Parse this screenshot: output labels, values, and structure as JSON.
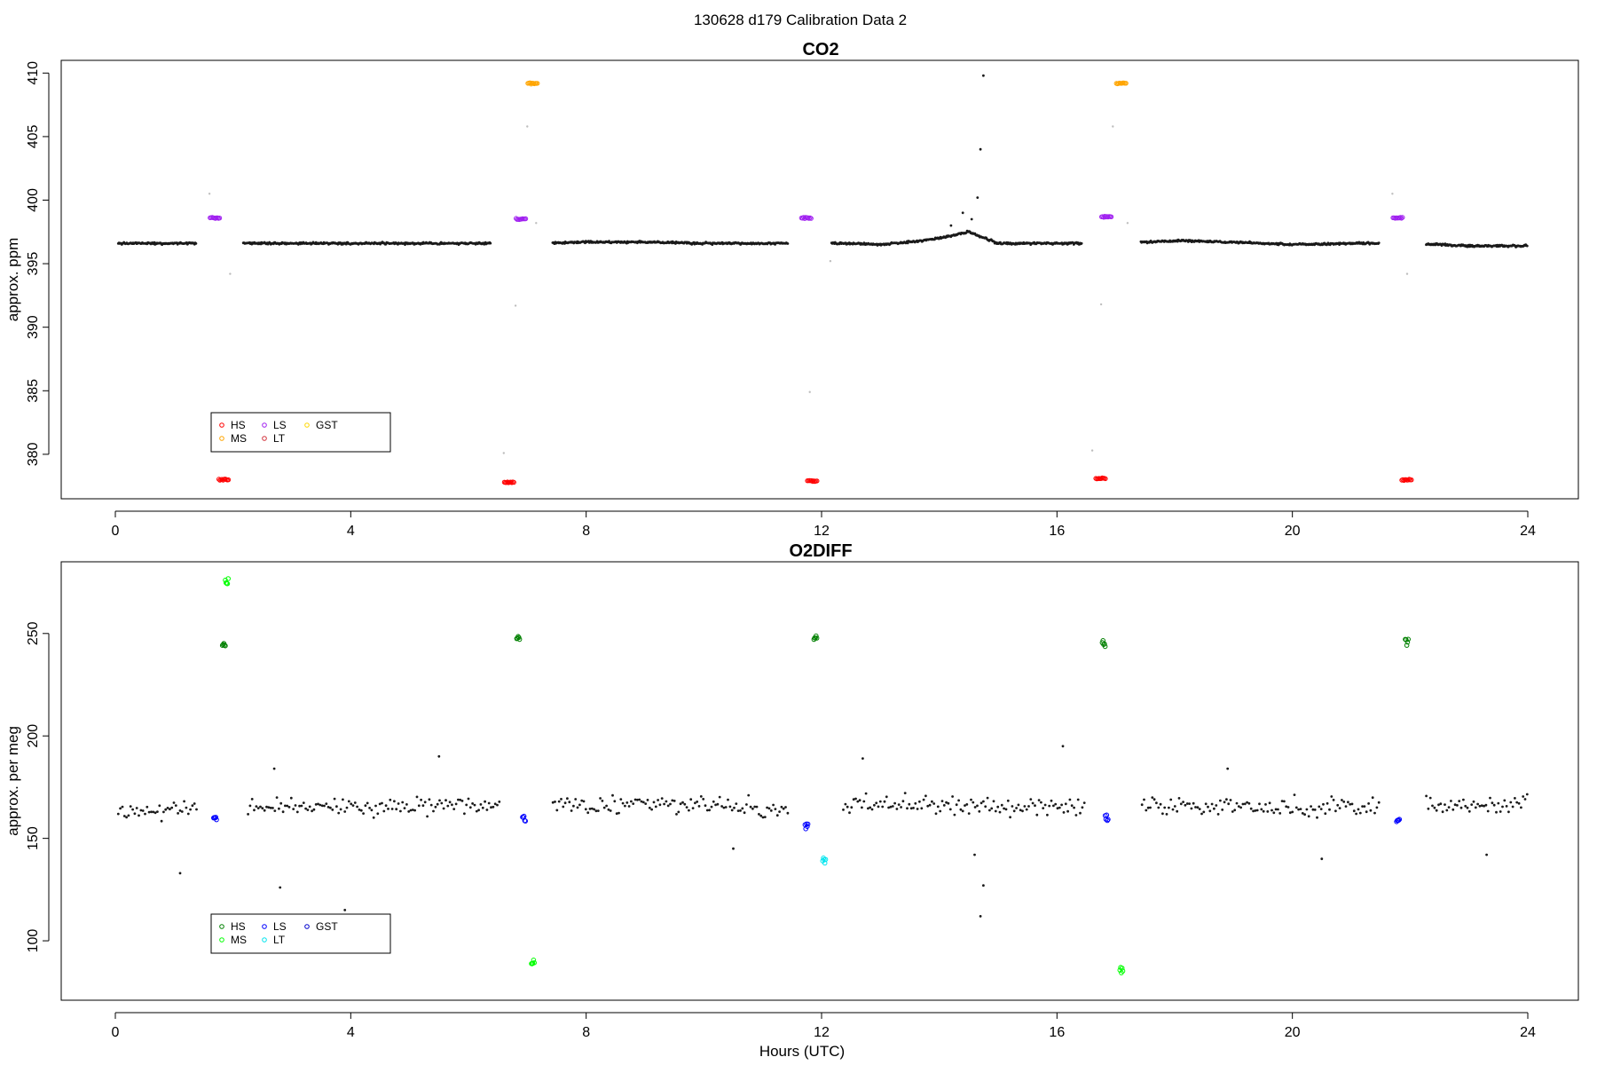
{
  "suptitle": "130628   d179   Calibration Data 2",
  "colors": {
    "data": "#1a1a1a",
    "excluded": "#bdbdbd",
    "HS_co2": "#ff0000",
    "MS_co2": "#ffa500",
    "LS_co2": "#a020f0",
    "LT_co2": "#d2323c",
    "GST_co2": "#ffd700",
    "HS_o2": "#008000",
    "MS_o2": "#00ff00",
    "LS_o2": "#0000ff",
    "LT_o2": "#00e5ee",
    "GST_o2": "#0000cd"
  },
  "chart_data": [
    {
      "type": "scatter",
      "title": "CO2",
      "xlabel": "",
      "ylabel": "approx. ppm",
      "xlim": [
        0,
        24
      ],
      "ylim": [
        376.5,
        411
      ],
      "xticks": [
        0,
        4,
        8,
        12,
        16,
        20,
        24
      ],
      "yticks": [
        380,
        385,
        390,
        395,
        400,
        405,
        410
      ],
      "legend": {
        "position": "bottom-left",
        "entries": [
          "HS",
          "MS",
          "LS",
          "LT",
          "GST"
        ]
      },
      "baseline": {
        "x": [
          0,
          1,
          2,
          3,
          4,
          5,
          6,
          7,
          8,
          9,
          10,
          11,
          12,
          12.5,
          13,
          13.5,
          14,
          14.5,
          15,
          16,
          17,
          18,
          19,
          20,
          21,
          22,
          23,
          24
        ],
        "y": [
          396.6,
          396.6,
          396.6,
          396.6,
          396.6,
          396.6,
          396.6,
          396.6,
          396.7,
          396.7,
          396.6,
          396.6,
          396.6,
          396.6,
          396.5,
          396.7,
          397.0,
          397.5,
          396.6,
          396.6,
          396.6,
          396.8,
          396.7,
          396.5,
          396.6,
          396.6,
          396.4,
          396.4
        ]
      },
      "calibrations": [
        {
          "label": "HS",
          "x": [
            1.85,
            6.7,
            11.85,
            16.75,
            21.95
          ],
          "y": [
            378.0,
            377.8,
            377.9,
            378.1,
            378.0
          ]
        },
        {
          "label": "LS",
          "x": [
            1.7,
            6.9,
            11.75,
            16.85,
            21.8
          ],
          "y": [
            398.6,
            398.5,
            398.6,
            398.7,
            398.6
          ]
        },
        {
          "label": "MS",
          "x": [
            7.1,
            17.1
          ],
          "y": [
            409.2,
            409.2
          ]
        },
        {
          "label": "LT",
          "x": [],
          "y": []
        },
        {
          "label": "GST",
          "x": [],
          "y": []
        }
      ],
      "excluded": {
        "x": [
          1.6,
          1.95,
          6.6,
          6.8,
          7.0,
          7.15,
          11.8,
          12.15,
          16.6,
          16.75,
          16.95,
          17.2,
          21.7,
          21.95
        ],
        "y": [
          400.5,
          394.2,
          380.1,
          391.7,
          405.8,
          398.2,
          384.9,
          395.2,
          380.3,
          391.8,
          405.8,
          398.2,
          400.5,
          394.2
        ]
      },
      "spikes": {
        "x": [
          14.2,
          14.4,
          14.55,
          14.65,
          14.7,
          14.75
        ],
        "y": [
          398.0,
          399.0,
          398.5,
          400.2,
          404.0,
          409.8
        ]
      }
    },
    {
      "type": "scatter",
      "title": "O2DIFF",
      "xlabel": "Hours (UTC)",
      "ylabel": "approx. per meg",
      "xlim": [
        0,
        24
      ],
      "ylim": [
        71,
        285
      ],
      "xticks": [
        0,
        4,
        8,
        12,
        16,
        20,
        24
      ],
      "yticks": [
        100,
        150,
        200,
        250
      ],
      "legend": {
        "position": "bottom-left",
        "entries": [
          "HS",
          "MS",
          "LS",
          "LT",
          "GST"
        ]
      },
      "baseline": {
        "x": [
          0,
          2,
          4,
          6,
          8,
          10,
          12,
          13,
          14,
          15,
          16,
          18,
          20,
          22,
          24
        ],
        "y": [
          162,
          166,
          165,
          166,
          166,
          166,
          164,
          168,
          166,
          165,
          165,
          166,
          165,
          166,
          167
        ]
      },
      "calibrations": [
        {
          "label": "HS",
          "x": [
            1.85,
            6.85,
            11.9,
            16.8,
            21.95
          ],
          "y": [
            245,
            248,
            248,
            246,
            246
          ]
        },
        {
          "label": "MS",
          "x": [
            1.9,
            7.1,
            17.1
          ],
          "y": [
            275,
            89,
            86
          ]
        },
        {
          "label": "LS",
          "x": [
            1.7,
            6.95,
            11.75,
            16.85,
            21.8
          ],
          "y": [
            160,
            160,
            156,
            160,
            159
          ]
        },
        {
          "label": "LT",
          "x": [
            12.05
          ],
          "y": [
            139
          ]
        },
        {
          "label": "GST",
          "x": [],
          "y": []
        }
      ],
      "outliers": {
        "x": [
          1.1,
          2.7,
          2.8,
          3.9,
          5.5,
          10.5,
          12.7,
          14.6,
          14.7,
          14.75,
          16.1,
          18.9,
          20.5,
          23.3
        ],
        "y": [
          133,
          184,
          126,
          115,
          190,
          145,
          189,
          142,
          112,
          127,
          195,
          184,
          140,
          142
        ]
      }
    }
  ]
}
